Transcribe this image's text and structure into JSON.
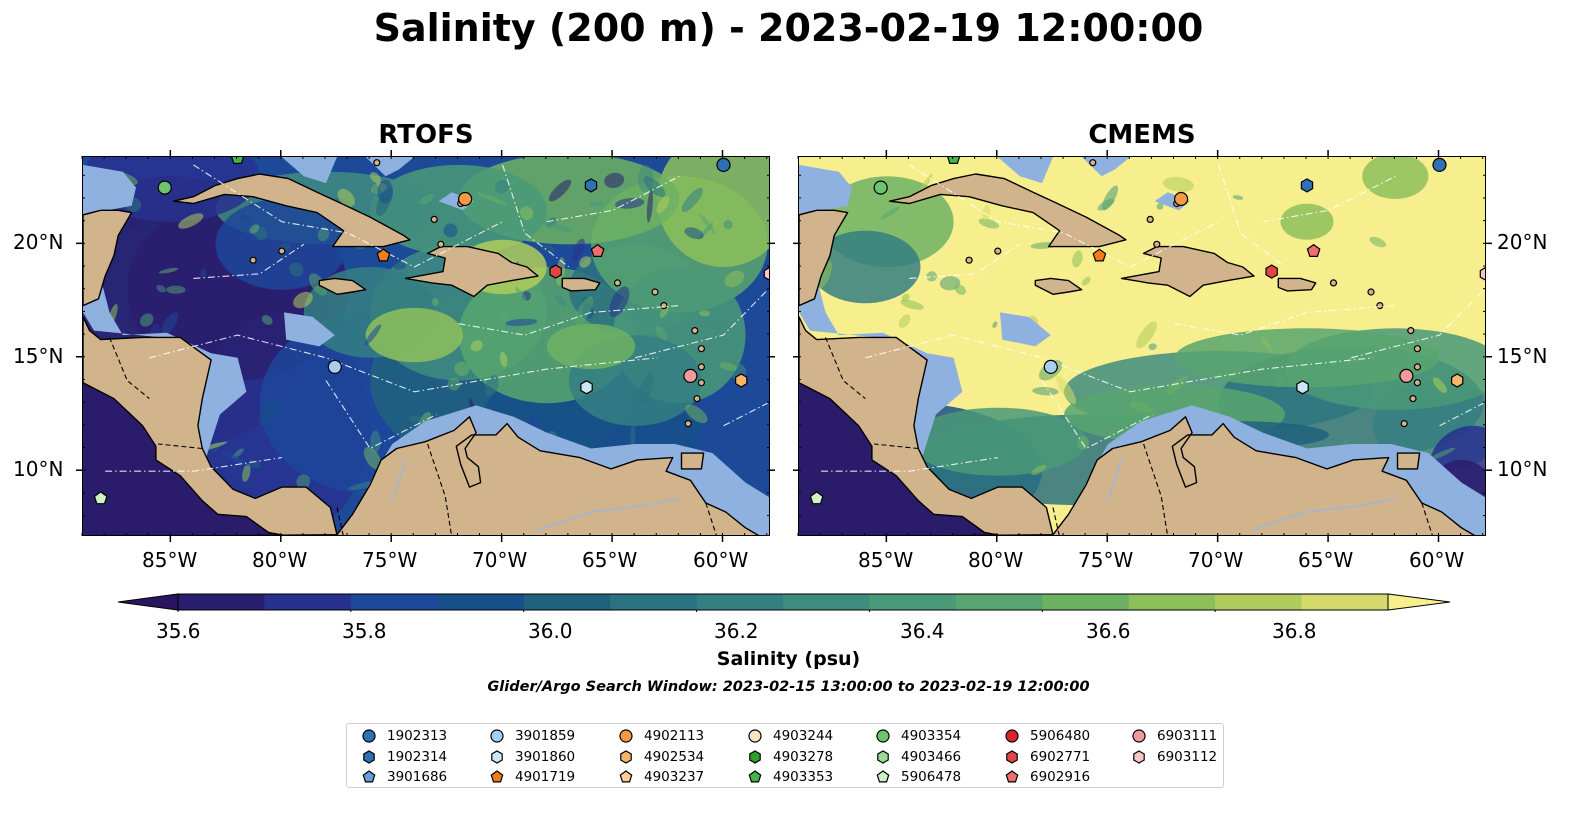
{
  "title": "Salinity (200 m) - 2023-02-19 12:00:00",
  "panels": [
    {
      "title": "RTOFS",
      "model": "rtofs"
    },
    {
      "title": "CMEMS",
      "model": "cmems"
    }
  ],
  "axes": {
    "x_ticks": [
      "85°W",
      "80°W",
      "75°W",
      "70°W",
      "65°W",
      "60°W"
    ],
    "y_ticks": [
      "20°N",
      "15°N",
      "10°N"
    ]
  },
  "colorbar": {
    "label": "Salinity (psu)",
    "ticks": [
      "35.6",
      "35.8",
      "36.0",
      "36.2",
      "36.4",
      "36.6",
      "36.8"
    ],
    "colormap": "haline",
    "colors": [
      "#2a1f6e",
      "#27318f",
      "#1d479a",
      "#174f8a",
      "#20627e",
      "#2b7280",
      "#357f83",
      "#3f8c7f",
      "#4a9978",
      "#58a56f",
      "#6db163",
      "#8dbf5a",
      "#b0cc5c",
      "#d6da6c"
    ],
    "extend_max_color": "#f7ef8d",
    "extend_min_color": "#2a1660"
  },
  "search_window": "Glider/Argo Search Window: 2023-02-15 13:00:00 to 2023-02-19 12:00:00",
  "legend": [
    {
      "id": "1902313",
      "color": "#2e6fb5",
      "marker": "circle"
    },
    {
      "id": "1902314",
      "color": "#2e6fb5",
      "marker": "hexagon"
    },
    {
      "id": "3901686",
      "color": "#6a9ed9",
      "marker": "pentagon"
    },
    {
      "id": "3901859",
      "color": "#a5cff0",
      "marker": "circle"
    },
    {
      "id": "3901860",
      "color": "#cde6f7",
      "marker": "hexagon"
    },
    {
      "id": "4901719",
      "color": "#f07c1a",
      "marker": "pentagon"
    },
    {
      "id": "4902113",
      "color": "#f39a43",
      "marker": "circle"
    },
    {
      "id": "4902534",
      "color": "#f7b56a",
      "marker": "hexagon"
    },
    {
      "id": "4903237",
      "color": "#fbcd95",
      "marker": "pentagon"
    },
    {
      "id": "4903244",
      "color": "#fde2c4",
      "marker": "circle"
    },
    {
      "id": "4903278",
      "color": "#2ca02c",
      "marker": "hexagon"
    },
    {
      "id": "4903353",
      "color": "#47b447",
      "marker": "pentagon"
    },
    {
      "id": "4903354",
      "color": "#6cc56c",
      "marker": "circle"
    },
    {
      "id": "4903466",
      "color": "#98dc98",
      "marker": "hexagon"
    },
    {
      "id": "5906478",
      "color": "#cdf3c4",
      "marker": "pentagon"
    },
    {
      "id": "5906480",
      "color": "#d62728",
      "marker": "circle"
    },
    {
      "id": "6902771",
      "color": "#e24545",
      "marker": "hexagon"
    },
    {
      "id": "6902916",
      "color": "#ec6e6e",
      "marker": "pentagon"
    },
    {
      "id": "6903111",
      "color": "#f39b9b",
      "marker": "circle"
    },
    {
      "id": "6903112",
      "color": "#f8c5c5",
      "marker": "hexagon"
    }
  ],
  "floats_on_map": [
    {
      "id": "4903353",
      "lon": -82.0,
      "lat": 23.8
    },
    {
      "id": "4903354",
      "lon": -85.3,
      "lat": 22.5
    },
    {
      "id": "4902113",
      "lon": -71.7,
      "lat": 22.0
    },
    {
      "id": "1902314",
      "lon": -66.0,
      "lat": 22.6
    },
    {
      "id": "1902313",
      "lon": -60.0,
      "lat": 23.5
    },
    {
      "id": "4901719",
      "lon": -75.4,
      "lat": 19.5
    },
    {
      "id": "6902916",
      "lon": -65.7,
      "lat": 19.7
    },
    {
      "id": "6902771",
      "lon": -67.6,
      "lat": 18.8
    },
    {
      "id": "6903112",
      "lon": -57.9,
      "lat": 18.7
    },
    {
      "id": "3901859",
      "lon": -77.6,
      "lat": 14.6
    },
    {
      "id": "3901860",
      "lon": -66.2,
      "lat": 13.7
    },
    {
      "id": "6903111",
      "lon": -61.5,
      "lat": 14.2
    },
    {
      "id": "4902534",
      "lon": -59.2,
      "lat": 14.0
    },
    {
      "id": "5906478",
      "lon": -88.2,
      "lat": 8.8
    }
  ],
  "colors": {
    "land": "#d2b48c",
    "shelf": "#8fb1e0"
  }
}
